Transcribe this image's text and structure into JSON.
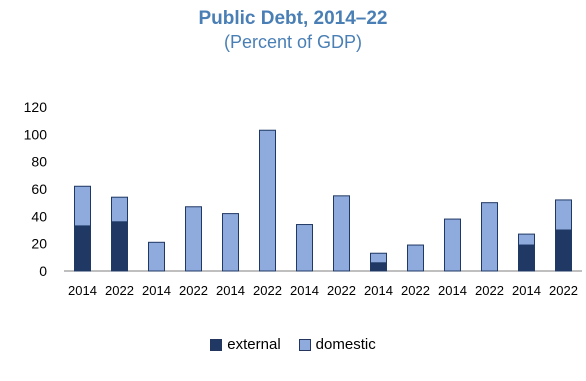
{
  "chart_data": {
    "type": "bar",
    "stacked": true,
    "title": "Public Debt, 2014–22",
    "subtitle": "(Percent of GDP)",
    "categories": [
      "2014",
      "2022",
      "2014",
      "2022",
      "2014",
      "2022",
      "2014",
      "2022",
      "2014",
      "2022",
      "2014",
      "2022",
      "2014",
      "2022"
    ],
    "series": [
      {
        "name": "external",
        "color": "#1f3864",
        "values": [
          33,
          36,
          0,
          0,
          0,
          0,
          0,
          0,
          6,
          0,
          0,
          0,
          19,
          30
        ]
      },
      {
        "name": "domestic",
        "color": "#8faadc",
        "values": [
          29,
          18,
          21,
          47,
          42,
          103,
          34,
          55,
          7,
          19,
          38,
          50,
          8,
          22
        ]
      }
    ],
    "ylim": [
      0,
      120
    ],
    "yticks": [
      0,
      20,
      40,
      60,
      80,
      100,
      120
    ],
    "xlabel": "",
    "ylabel": "",
    "legend_position": "bottom-center",
    "grid": false
  }
}
